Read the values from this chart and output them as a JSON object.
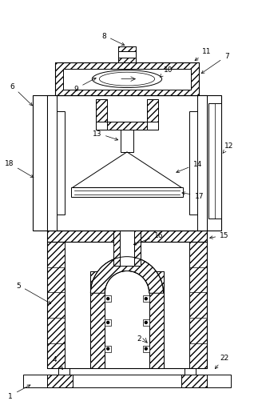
{
  "bg_color": "#ffffff",
  "lc": "#000000",
  "fig_w": 3.18,
  "fig_h": 5.02,
  "dpi": 100
}
